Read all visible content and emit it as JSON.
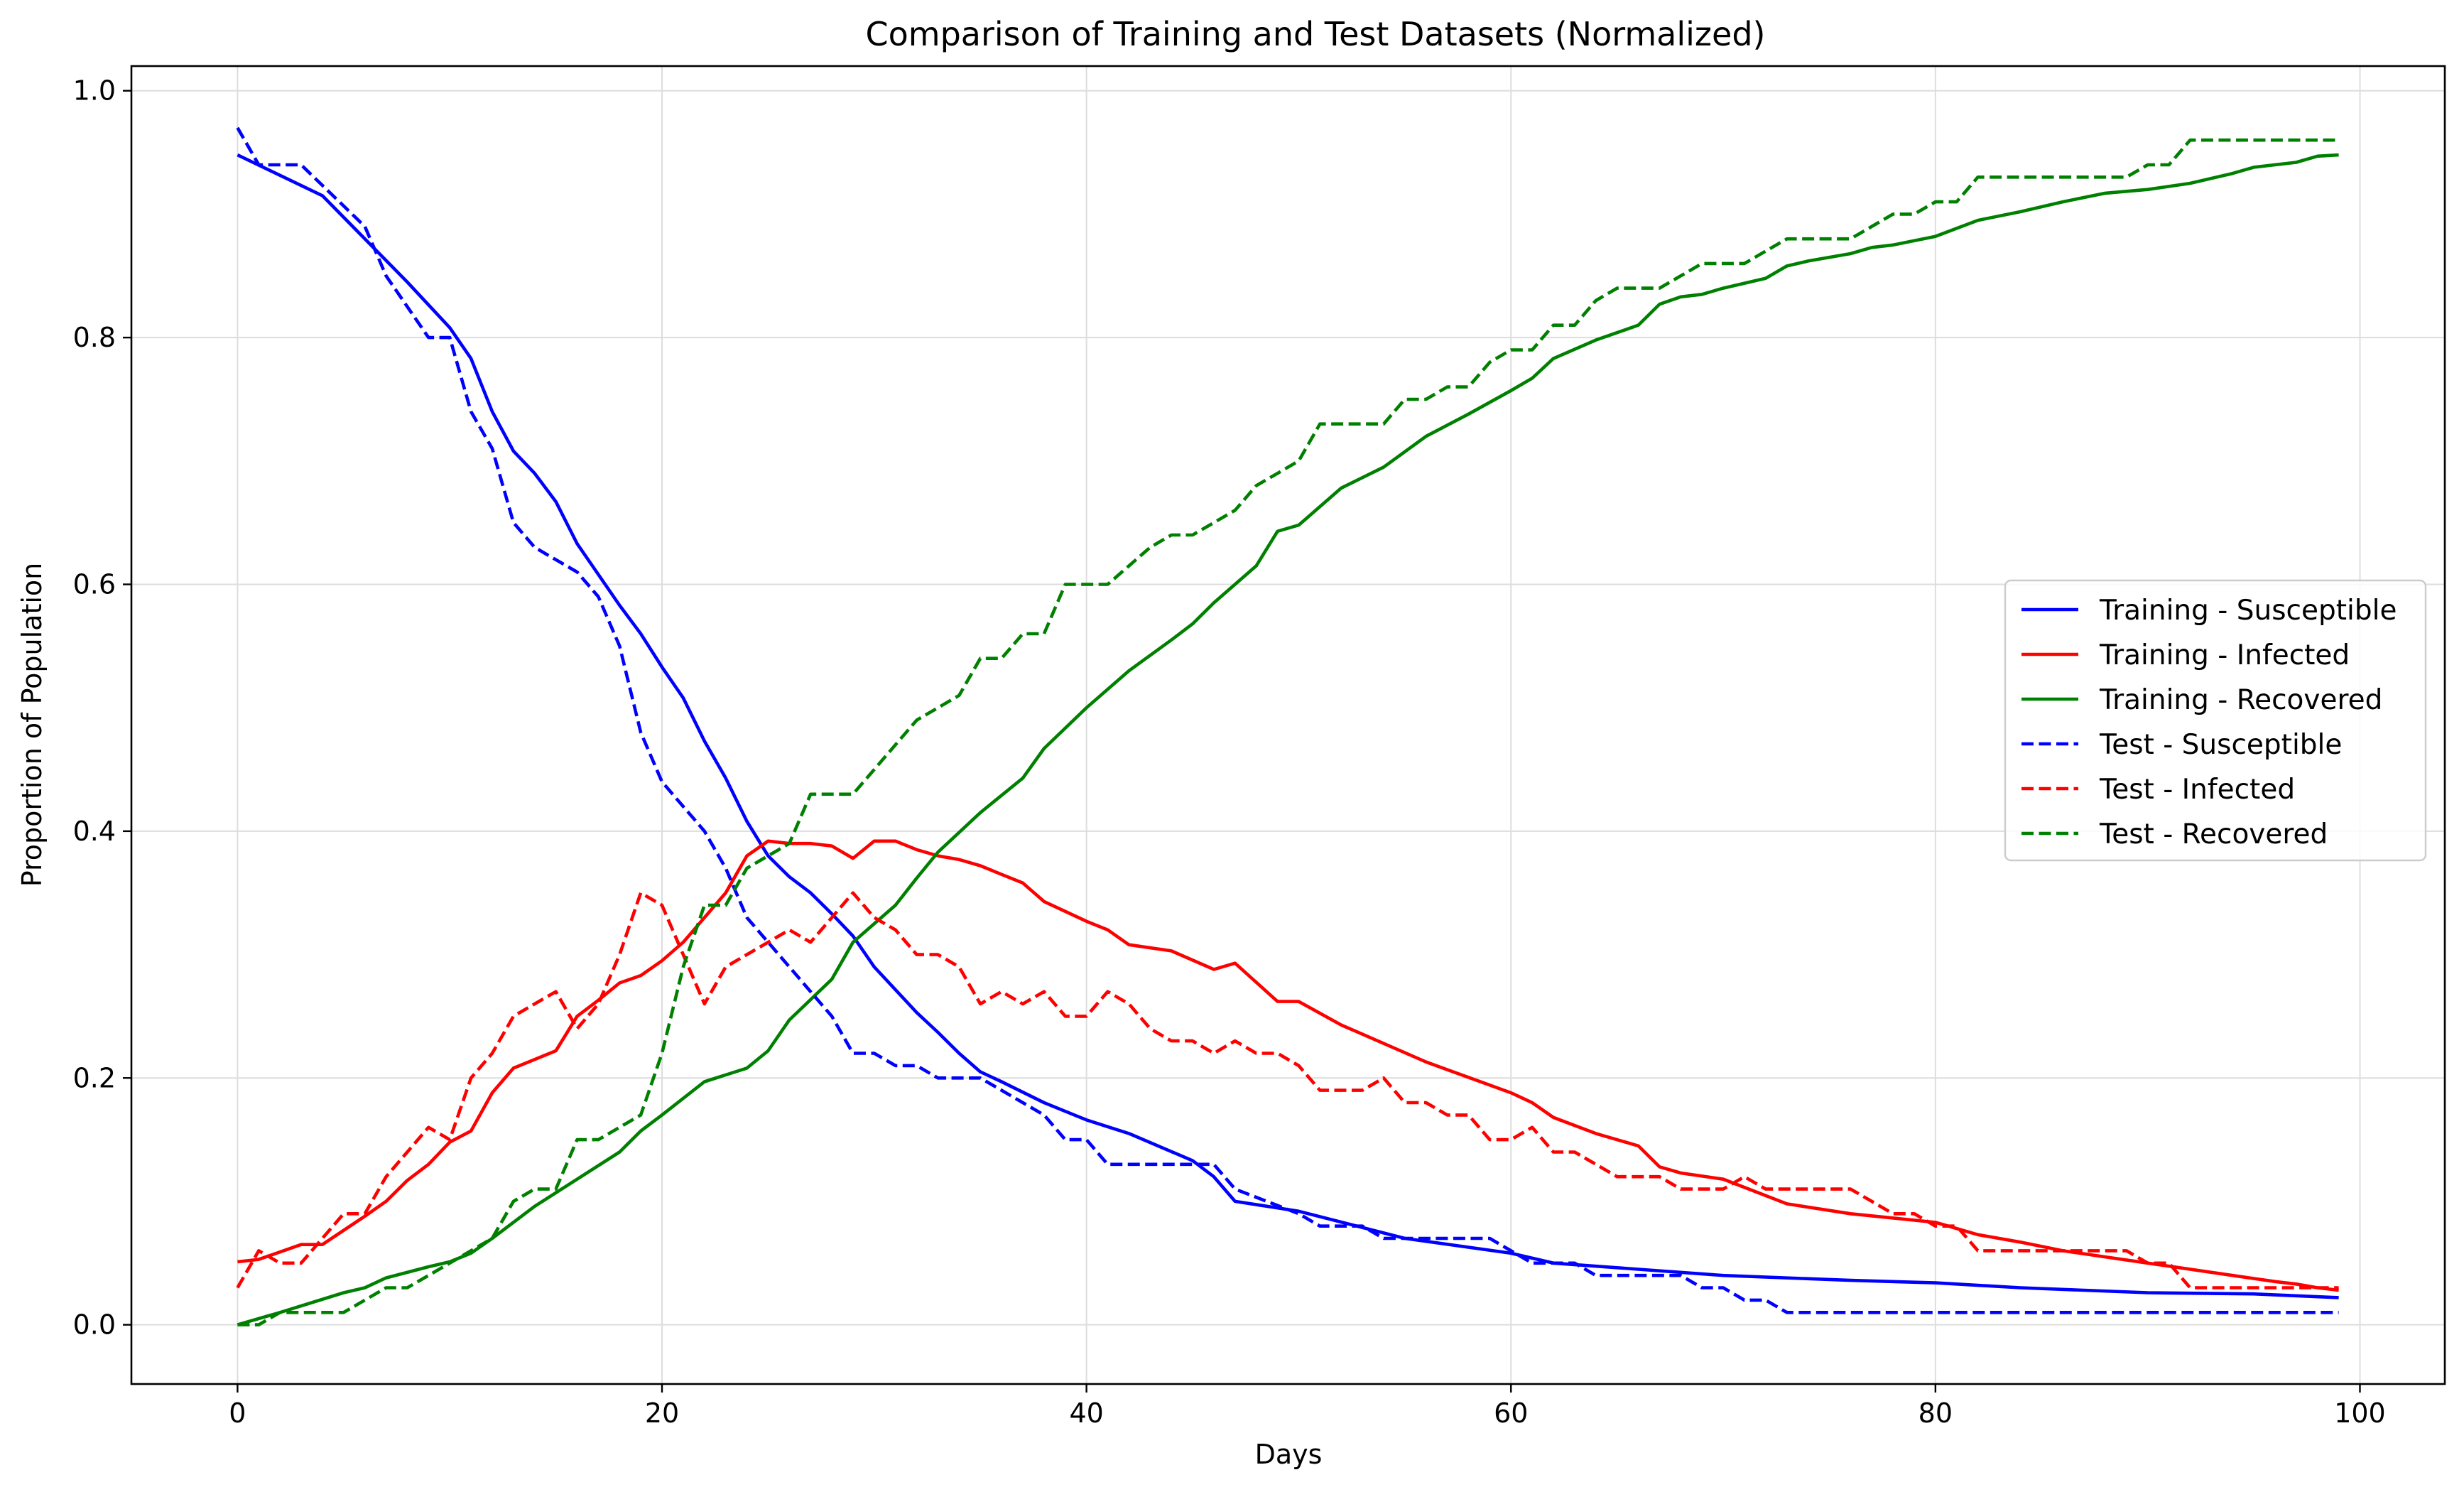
{
  "chart_data": {
    "type": "line",
    "title": "Comparison of Training and Test Datasets (Normalized)",
    "xlabel": "Days",
    "ylabel": "Proportion of Population",
    "xlim": [
      -5,
      104
    ],
    "ylim": [
      -0.048,
      1.02
    ],
    "xticks": [
      0,
      20,
      40,
      60,
      80,
      100
    ],
    "xtick_labels": [
      "0",
      "20",
      "40",
      "60",
      "80",
      "100"
    ],
    "yticks": [
      0.0,
      0.2,
      0.4,
      0.6,
      0.8,
      1.0
    ],
    "ytick_labels": [
      "0.0",
      "0.2",
      "0.4",
      "0.6",
      "0.8",
      "1.0"
    ],
    "grid": true,
    "legend_position": "center-right",
    "series": [
      {
        "name": "Training - Susceptible",
        "color": "#0000ff",
        "dash": "solid",
        "x": [
          0,
          4,
          6,
          8,
          10,
          11,
          12,
          13,
          14,
          15,
          16,
          18,
          19,
          20,
          21,
          22,
          23,
          24,
          25,
          26,
          27,
          28,
          29,
          30,
          32,
          33,
          34,
          35,
          36,
          38,
          40,
          42,
          45,
          46,
          47,
          50,
          55,
          60,
          62,
          70,
          76,
          80,
          84,
          90,
          95,
          99
        ],
        "y": [
          0.948,
          0.915,
          0.88,
          0.845,
          0.808,
          0.783,
          0.74,
          0.708,
          0.69,
          0.667,
          0.633,
          0.583,
          0.56,
          0.533,
          0.508,
          0.473,
          0.443,
          0.408,
          0.38,
          0.363,
          0.35,
          0.333,
          0.315,
          0.29,
          0.253,
          0.237,
          0.22,
          0.205,
          0.197,
          0.18,
          0.166,
          0.155,
          0.133,
          0.12,
          0.1,
          0.092,
          0.07,
          0.058,
          0.05,
          0.04,
          0.036,
          0.034,
          0.03,
          0.026,
          0.025,
          0.022
        ]
      },
      {
        "name": "Training - Infected",
        "color": "#ff0000",
        "dash": "solid",
        "x": [
          0,
          1,
          3,
          4,
          6,
          7,
          8,
          9,
          10,
          11,
          12,
          13,
          14,
          15,
          16,
          17,
          18,
          19,
          20,
          21,
          22,
          23,
          24,
          25,
          26,
          27,
          28,
          29,
          30,
          31,
          32,
          33,
          34,
          35,
          36,
          37,
          38,
          40,
          41,
          42,
          44,
          46,
          47,
          49,
          50,
          52,
          56,
          60,
          61,
          62,
          64,
          66,
          67,
          68,
          70,
          73,
          76,
          80,
          82,
          84,
          86,
          88,
          90,
          94,
          96,
          97,
          98,
          99
        ],
        "y": [
          0.051,
          0.053,
          0.065,
          0.065,
          0.088,
          0.1,
          0.117,
          0.13,
          0.148,
          0.157,
          0.188,
          0.208,
          0.215,
          0.222,
          0.25,
          0.263,
          0.277,
          0.283,
          0.295,
          0.31,
          0.33,
          0.35,
          0.38,
          0.392,
          0.39,
          0.39,
          0.388,
          0.378,
          0.392,
          0.392,
          0.385,
          0.38,
          0.377,
          0.372,
          0.365,
          0.358,
          0.343,
          0.327,
          0.32,
          0.308,
          0.303,
          0.288,
          0.293,
          0.262,
          0.262,
          0.243,
          0.213,
          0.188,
          0.18,
          0.168,
          0.155,
          0.145,
          0.128,
          0.123,
          0.118,
          0.098,
          0.09,
          0.083,
          0.073,
          0.067,
          0.06,
          0.055,
          0.05,
          0.04,
          0.035,
          0.033,
          0.03,
          0.028
        ]
      },
      {
        "name": "Training - Recovered",
        "color": "#008000",
        "dash": "solid",
        "x": [
          0,
          2,
          5,
          6,
          7,
          9,
          10,
          11,
          12,
          14,
          15,
          18,
          19,
          20,
          22,
          24,
          25,
          26,
          28,
          29,
          30,
          31,
          32,
          33,
          35,
          37,
          38,
          40,
          42,
          44,
          45,
          46,
          48,
          49,
          50,
          52,
          54,
          56,
          58,
          60,
          61,
          62,
          64,
          66,
          67,
          68,
          69,
          70,
          72,
          73,
          74,
          76,
          77,
          78,
          80,
          82,
          84,
          86,
          88,
          90,
          92,
          94,
          95,
          97,
          98,
          99
        ],
        "y": [
          0.0,
          0.01,
          0.026,
          0.03,
          0.038,
          0.047,
          0.051,
          0.058,
          0.07,
          0.096,
          0.107,
          0.14,
          0.157,
          0.17,
          0.197,
          0.208,
          0.222,
          0.247,
          0.28,
          0.31,
          0.325,
          0.34,
          0.362,
          0.383,
          0.415,
          0.443,
          0.467,
          0.5,
          0.53,
          0.555,
          0.568,
          0.585,
          0.615,
          0.643,
          0.648,
          0.678,
          0.695,
          0.72,
          0.738,
          0.757,
          0.767,
          0.783,
          0.798,
          0.81,
          0.827,
          0.833,
          0.835,
          0.84,
          0.848,
          0.858,
          0.862,
          0.868,
          0.873,
          0.875,
          0.882,
          0.895,
          0.902,
          0.91,
          0.917,
          0.92,
          0.925,
          0.933,
          0.938,
          0.942,
          0.947,
          0.948
        ]
      },
      {
        "name": "Test - Susceptible",
        "color": "#0000ff",
        "dash": "dashed",
        "x": [
          0,
          1,
          3,
          6,
          7,
          9,
          10,
          11,
          12,
          13,
          14,
          15,
          16,
          17,
          18,
          19,
          20,
          22,
          23,
          24,
          25,
          26,
          27,
          28,
          29,
          30,
          31,
          32,
          33,
          34,
          35,
          36,
          37,
          38,
          39,
          40,
          41,
          42,
          46,
          47,
          50,
          51,
          53,
          54,
          55,
          59,
          60,
          61,
          62,
          63,
          64,
          68,
          69,
          70,
          71,
          72,
          73,
          74,
          99
        ],
        "y": [
          0.97,
          0.94,
          0.94,
          0.89,
          0.85,
          0.8,
          0.8,
          0.74,
          0.71,
          0.65,
          0.63,
          0.62,
          0.61,
          0.59,
          0.55,
          0.48,
          0.44,
          0.4,
          0.37,
          0.33,
          0.31,
          0.29,
          0.27,
          0.25,
          0.22,
          0.22,
          0.21,
          0.21,
          0.2,
          0.2,
          0.2,
          0.19,
          0.18,
          0.17,
          0.15,
          0.15,
          0.13,
          0.13,
          0.13,
          0.11,
          0.09,
          0.08,
          0.08,
          0.07,
          0.07,
          0.07,
          0.06,
          0.05,
          0.05,
          0.05,
          0.04,
          0.04,
          0.03,
          0.03,
          0.02,
          0.02,
          0.01,
          0.01,
          0.01
        ]
      },
      {
        "name": "Test - Infected",
        "color": "#ff0000",
        "dash": "dashed",
        "x": [
          0,
          1,
          2,
          3,
          4,
          5,
          6,
          7,
          8,
          9,
          10,
          11,
          12,
          13,
          14,
          15,
          16,
          17,
          18,
          19,
          20,
          21,
          22,
          23,
          24,
          25,
          26,
          27,
          28,
          29,
          30,
          31,
          32,
          33,
          34,
          35,
          36,
          37,
          38,
          39,
          40,
          41,
          42,
          43,
          44,
          45,
          46,
          47,
          48,
          49,
          50,
          51,
          52,
          53,
          54,
          55,
          56,
          57,
          58,
          59,
          60,
          61,
          62,
          63,
          64,
          65,
          66,
          67,
          68,
          69,
          70,
          71,
          72,
          73,
          74,
          75,
          76,
          77,
          78,
          79,
          80,
          81,
          82,
          83,
          84,
          85,
          86,
          87,
          88,
          89,
          90,
          91,
          92,
          99
        ],
        "y": [
          0.03,
          0.06,
          0.05,
          0.05,
          0.07,
          0.09,
          0.09,
          0.12,
          0.14,
          0.16,
          0.15,
          0.2,
          0.22,
          0.25,
          0.26,
          0.27,
          0.24,
          0.26,
          0.3,
          0.35,
          0.34,
          0.3,
          0.26,
          0.29,
          0.3,
          0.31,
          0.32,
          0.31,
          0.33,
          0.35,
          0.33,
          0.32,
          0.3,
          0.3,
          0.29,
          0.26,
          0.27,
          0.26,
          0.27,
          0.25,
          0.25,
          0.27,
          0.26,
          0.24,
          0.23,
          0.23,
          0.22,
          0.23,
          0.22,
          0.22,
          0.21,
          0.19,
          0.19,
          0.19,
          0.2,
          0.18,
          0.18,
          0.17,
          0.17,
          0.15,
          0.15,
          0.16,
          0.14,
          0.14,
          0.13,
          0.12,
          0.12,
          0.12,
          0.11,
          0.11,
          0.11,
          0.12,
          0.11,
          0.11,
          0.11,
          0.11,
          0.11,
          0.1,
          0.09,
          0.09,
          0.08,
          0.08,
          0.06,
          0.06,
          0.06,
          0.06,
          0.06,
          0.06,
          0.06,
          0.06,
          0.05,
          0.05,
          0.03,
          0.03
        ]
      },
      {
        "name": "Test - Recovered",
        "color": "#008000",
        "dash": "dashed",
        "x": [
          0,
          1,
          2,
          5,
          7,
          8,
          9,
          10,
          11,
          12,
          13,
          14,
          15,
          16,
          17,
          19,
          20,
          21,
          22,
          23,
          24,
          26,
          27,
          28,
          29,
          31,
          32,
          34,
          35,
          36,
          37,
          38,
          39,
          41,
          43,
          44,
          45,
          47,
          48,
          49,
          50,
          51,
          54,
          55,
          56,
          57,
          58,
          59,
          60,
          61,
          62,
          63,
          64,
          65,
          66,
          67,
          68,
          69,
          70,
          71,
          72,
          73,
          74,
          76,
          77,
          78,
          79,
          80,
          81,
          82,
          89,
          90,
          91,
          92,
          99
        ],
        "y": [
          0.0,
          0.0,
          0.01,
          0.01,
          0.03,
          0.03,
          0.04,
          0.05,
          0.06,
          0.07,
          0.1,
          0.11,
          0.11,
          0.15,
          0.15,
          0.17,
          0.22,
          0.29,
          0.34,
          0.34,
          0.37,
          0.39,
          0.43,
          0.43,
          0.43,
          0.47,
          0.49,
          0.51,
          0.54,
          0.54,
          0.56,
          0.56,
          0.6,
          0.6,
          0.63,
          0.64,
          0.64,
          0.66,
          0.68,
          0.69,
          0.7,
          0.73,
          0.73,
          0.75,
          0.75,
          0.76,
          0.76,
          0.78,
          0.79,
          0.79,
          0.81,
          0.81,
          0.83,
          0.84,
          0.84,
          0.84,
          0.85,
          0.86,
          0.86,
          0.86,
          0.87,
          0.88,
          0.88,
          0.88,
          0.89,
          0.9,
          0.9,
          0.91,
          0.91,
          0.93,
          0.93,
          0.94,
          0.94,
          0.96,
          0.96
        ]
      }
    ]
  }
}
